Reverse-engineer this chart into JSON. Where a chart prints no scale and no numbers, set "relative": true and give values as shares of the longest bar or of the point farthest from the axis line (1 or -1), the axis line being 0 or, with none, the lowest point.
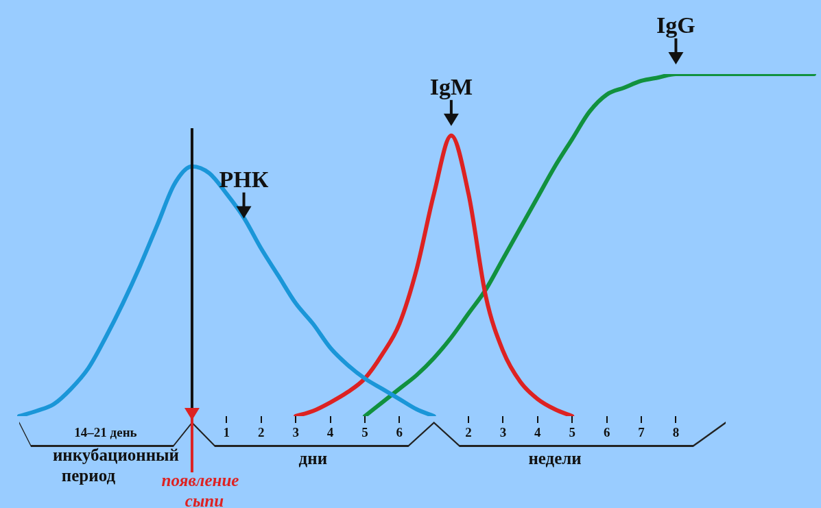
{
  "chart_data": {
    "type": "line",
    "relative": true,
    "legend": false,
    "grid": false,
    "marker": "none",
    "categories": [
      null,
      null,
      null,
      null,
      null,
      null,
      null,
      null,
      null,
      null,
      null,
      null,
      "1",
      null,
      "2",
      null,
      "3",
      null,
      "4",
      null,
      "5",
      null,
      "6",
      null,
      null,
      null,
      "2",
      null,
      "3",
      null,
      "4",
      null,
      "5",
      null,
      "6",
      null,
      "7",
      null,
      "8",
      null,
      null,
      null,
      null,
      null,
      null,
      null,
      null
    ],
    "series": [
      {
        "name": "РНК",
        "color": "#1a96d8",
        "values": [
          0,
          0.015,
          0.035,
          0.08,
          0.14,
          0.23,
          0.33,
          0.44,
          0.56,
          0.68,
          0.73,
          0.71,
          0.65,
          0.58,
          0.49,
          0.41,
          0.33,
          0.27,
          0.2,
          0.15,
          0.11,
          0.08,
          0.05,
          0.02,
          0,
          null,
          null,
          null,
          null,
          null,
          null,
          null,
          null,
          null,
          null,
          null,
          null,
          null,
          null,
          null,
          null,
          null,
          null,
          null,
          null,
          null,
          null
        ]
      },
      {
        "name": "IgM",
        "color": "#dd2222",
        "values": [
          null,
          null,
          null,
          null,
          null,
          null,
          null,
          null,
          null,
          null,
          null,
          null,
          null,
          null,
          null,
          null,
          0,
          0.015,
          0.04,
          0.07,
          0.11,
          0.18,
          0.27,
          0.43,
          0.65,
          0.82,
          0.65,
          0.35,
          0.19,
          0.1,
          0.05,
          0.02,
          0,
          null,
          null,
          null,
          null,
          null,
          null,
          null,
          null,
          null,
          null,
          null,
          null,
          null,
          null
        ]
      },
      {
        "name": "IgG",
        "color": "#11913e",
        "values": [
          null,
          null,
          null,
          null,
          null,
          null,
          null,
          null,
          null,
          null,
          null,
          null,
          null,
          null,
          null,
          null,
          null,
          null,
          null,
          null,
          0,
          0.04,
          0.08,
          0.12,
          0.17,
          0.23,
          0.3,
          0.37,
          0.46,
          0.55,
          0.64,
          0.73,
          0.81,
          0.89,
          0.94,
          0.96,
          0.98,
          0.99,
          1,
          1,
          1,
          1,
          1,
          1,
          1,
          1,
          1
        ]
      }
    ],
    "annotations": [
      "14–21 день",
      "инкубационный период",
      "дни",
      "недели",
      "появление сыпи"
    ]
  }
}
